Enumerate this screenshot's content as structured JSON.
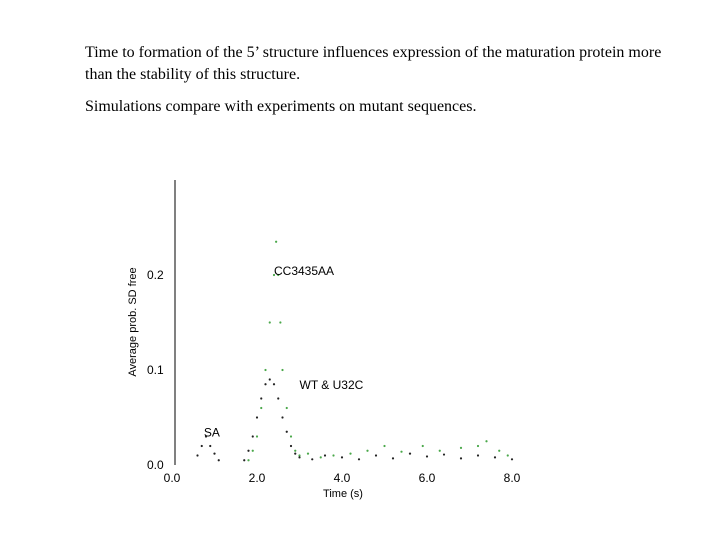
{
  "slide": {
    "paragraphs": [
      "Time to formation of the 5’ structure influences expression of the maturation protein more than the stability of this structure.",
      "Simulations compare with experiments on mutant sequences."
    ]
  },
  "chart_data": {
    "type": "scatter",
    "title": "",
    "xlabel": "Time (s)",
    "ylabel": "Average prob. SD free",
    "xlim": [
      0,
      8.0
    ],
    "ylim": [
      0,
      0.3
    ],
    "x_ticks": [
      "0.0",
      "2.0",
      "4.0",
      "6.0",
      "8.0"
    ],
    "y_ticks": [
      "0.0",
      "0.1",
      "0.2"
    ],
    "y_tick_values": [
      0.0,
      0.1,
      0.2
    ],
    "grid": false,
    "annotations": [
      {
        "text": "CC3435AA",
        "x": 2.4,
        "y": 0.2
      },
      {
        "text": "WT & U32C",
        "x": 3.0,
        "y": 0.08
      },
      {
        "text": "SA",
        "x": 0.75,
        "y": 0.03
      }
    ],
    "series": [
      {
        "color": "#4aa84a",
        "x": [
          1.8,
          1.9,
          2.0,
          2.1,
          2.2,
          2.3,
          2.4,
          2.45,
          2.5,
          2.55,
          2.6,
          2.7,
          2.8,
          2.9,
          3.0,
          3.2,
          3.5,
          3.8,
          4.2,
          4.6,
          5.0,
          5.4,
          5.9,
          6.3,
          6.8,
          7.2,
          7.4,
          7.7,
          7.9
        ],
        "y": [
          0.005,
          0.015,
          0.03,
          0.06,
          0.1,
          0.15,
          0.2,
          0.235,
          0.2,
          0.15,
          0.1,
          0.06,
          0.03,
          0.015,
          0.01,
          0.012,
          0.008,
          0.01,
          0.012,
          0.015,
          0.02,
          0.014,
          0.02,
          0.015,
          0.018,
          0.02,
          0.025,
          0.015,
          0.01
        ]
      },
      {
        "color": "#222222",
        "x": [
          0.6,
          0.7,
          0.8,
          0.9,
          1.0,
          1.1,
          1.7,
          1.8,
          1.9,
          2.0,
          2.1,
          2.2,
          2.3,
          2.4,
          2.5,
          2.6,
          2.7,
          2.8,
          2.9,
          3.0,
          3.3,
          3.6,
          4.0,
          4.4,
          4.8,
          5.2,
          5.6,
          6.0,
          6.4,
          6.8,
          7.2,
          7.6,
          8.0
        ],
        "y": [
          0.01,
          0.02,
          0.03,
          0.02,
          0.012,
          0.005,
          0.005,
          0.015,
          0.03,
          0.05,
          0.07,
          0.085,
          0.09,
          0.085,
          0.07,
          0.05,
          0.035,
          0.02,
          0.012,
          0.008,
          0.006,
          0.01,
          0.008,
          0.006,
          0.01,
          0.007,
          0.012,
          0.009,
          0.011,
          0.007,
          0.01,
          0.008,
          0.006
        ]
      }
    ]
  }
}
